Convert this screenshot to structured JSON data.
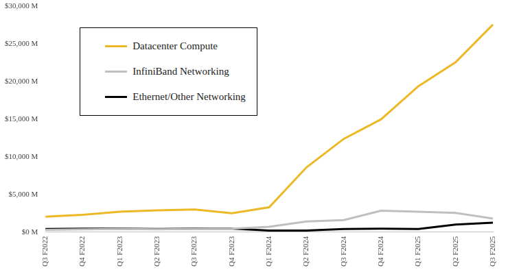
{
  "chart_data": {
    "type": "line",
    "categories": [
      "Q3 F2022",
      "Q4 F2022",
      "Q1 F2023",
      "Q2 F2023",
      "Q3 F2023",
      "Q4 F2023",
      "Q1 F2024",
      "Q2 F2024",
      "Q3 F2024",
      "Q4 F2024",
      "Q1 F2025",
      "Q2 F2025",
      "Q3 F2025"
    ],
    "series": [
      {
        "name": "Datacenter Compute",
        "color": "#EDB825",
        "values": [
          2050,
          2300,
          2700,
          2900,
          3000,
          2500,
          3300,
          8600,
          12400,
          15000,
          19400,
          22600,
          27600
        ]
      },
      {
        "name": "InfiniBand Networking",
        "color": "#BFBFBF",
        "values": [
          300,
          350,
          400,
          350,
          400,
          450,
          700,
          1400,
          1600,
          2850,
          2700,
          2550,
          1800
        ]
      },
      {
        "name": "Ethernet/Other Networking",
        "color": "#000000",
        "values": [
          400,
          450,
          450,
          400,
          450,
          450,
          200,
          200,
          400,
          450,
          400,
          1000,
          1250
        ]
      }
    ],
    "ylim": [
      0,
      30000
    ],
    "yticks": [
      {
        "value": 0,
        "label": "$0 M"
      },
      {
        "value": 5000,
        "label": "$5,000 M"
      },
      {
        "value": 10000,
        "label": "$10,000 M"
      },
      {
        "value": 15000,
        "label": "$15,000 M"
      },
      {
        "value": 20000,
        "label": "$20,000 M"
      },
      {
        "value": 25000,
        "label": "$25,000 M"
      },
      {
        "value": 30000,
        "label": "$30,000 M"
      }
    ],
    "grid": false,
    "legend": "upper left"
  }
}
